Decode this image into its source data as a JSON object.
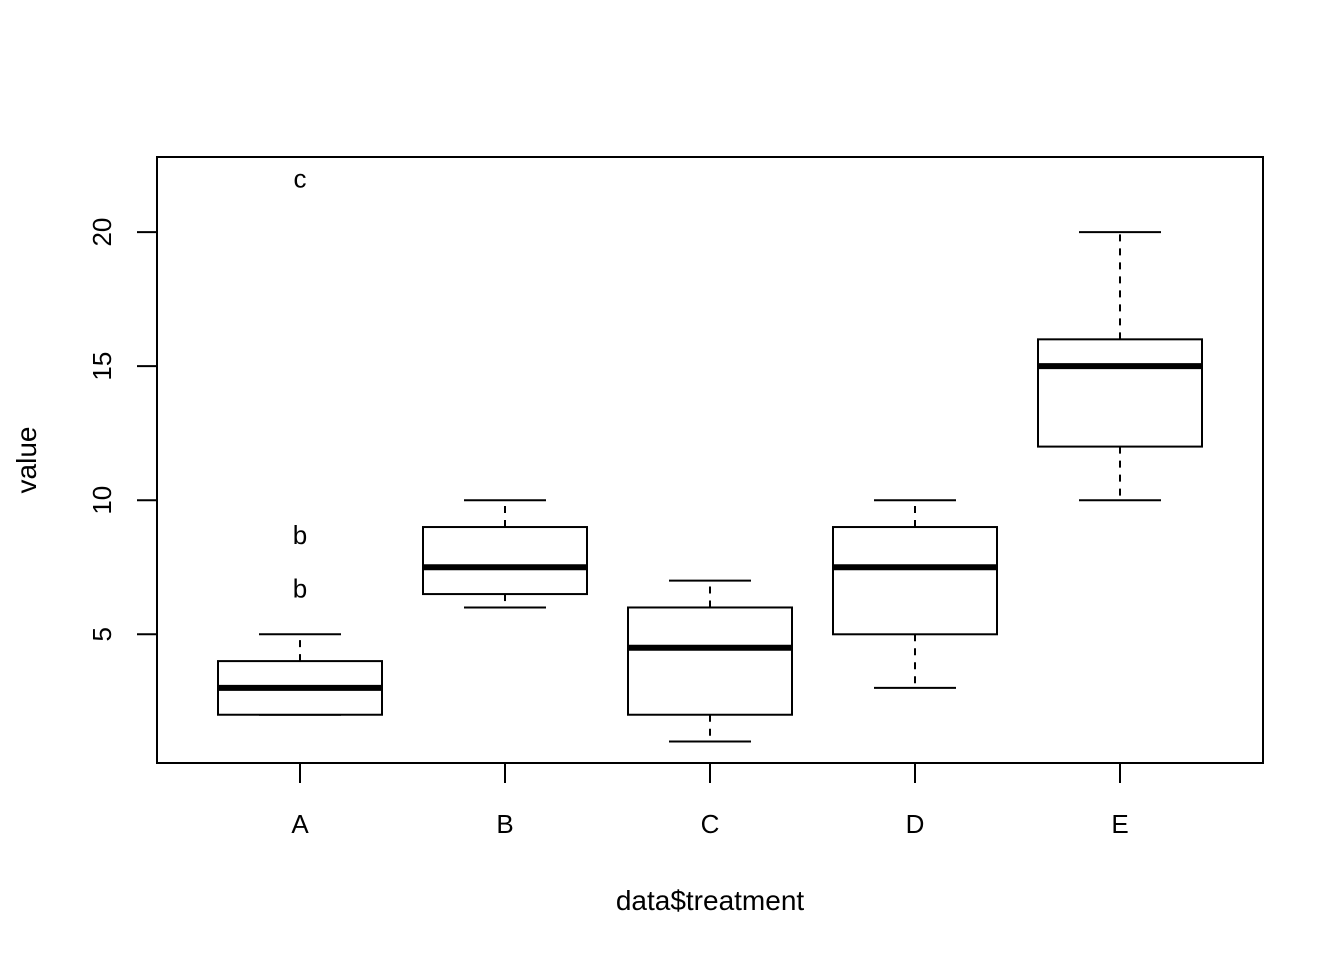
{
  "chart_data": {
    "type": "box",
    "xlabel": "data$treatment",
    "ylabel": "value",
    "ylim": [
      0.2,
      22.8
    ],
    "yticks": [
      5,
      10,
      15,
      20
    ],
    "categories": [
      "A",
      "B",
      "C",
      "D",
      "E"
    ],
    "boxes": [
      {
        "category": "A",
        "whisker_low": 2,
        "q1": 2,
        "median": 3,
        "q3": 4,
        "whisker_high": 5
      },
      {
        "category": "B",
        "whisker_low": 6,
        "q1": 6.5,
        "median": 7.5,
        "q3": 9,
        "whisker_high": 10
      },
      {
        "category": "C",
        "whisker_low": 1,
        "q1": 2,
        "median": 4.5,
        "q3": 6,
        "whisker_high": 7
      },
      {
        "category": "D",
        "whisker_low": 3,
        "q1": 5,
        "median": 7.5,
        "q3": 9,
        "whisker_high": 10
      },
      {
        "category": "E",
        "whisker_low": 10,
        "q1": 12,
        "median": 15,
        "q3": 16,
        "whisker_high": 20
      }
    ],
    "point_labels": [
      {
        "category": "A",
        "y": 22,
        "text": "c"
      },
      {
        "category": "A",
        "y": 8.7,
        "text": "b"
      },
      {
        "category": "A",
        "y": 6.7,
        "text": "b"
      }
    ],
    "grid": false,
    "legend": "none"
  }
}
